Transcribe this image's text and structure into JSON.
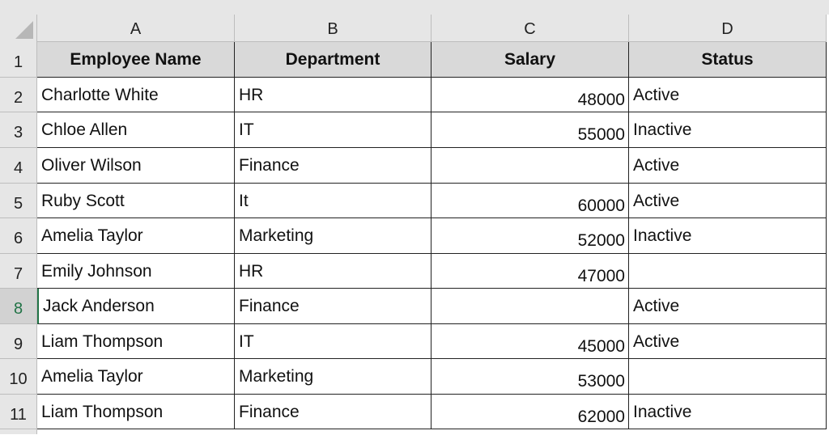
{
  "columns": [
    "A",
    "B",
    "C",
    "D"
  ],
  "rows": [
    "1",
    "2",
    "3",
    "4",
    "5",
    "6",
    "7",
    "8",
    "9",
    "10",
    "11"
  ],
  "selected_row": "8",
  "headers": [
    "Employee Name",
    "Department",
    "Salary",
    "Status"
  ],
  "data": [
    [
      "Charlotte White",
      "HR",
      "48000",
      "Active"
    ],
    [
      "Chloe Allen",
      "IT",
      "55000",
      "Inactive"
    ],
    [
      "Oliver Wilson",
      "Finance",
      "",
      "Active"
    ],
    [
      "Ruby Scott",
      "It",
      "60000",
      "Active"
    ],
    [
      "Amelia Taylor",
      "Marketing",
      "52000",
      "Inactive"
    ],
    [
      "Emily Johnson",
      "HR",
      "47000",
      ""
    ],
    [
      "Jack Anderson",
      "Finance",
      "",
      "Active"
    ],
    [
      "Liam Thompson",
      "IT",
      "45000",
      "Active"
    ],
    [
      "Amelia Taylor",
      "Marketing",
      "53000",
      ""
    ],
    [
      "Liam Thompson",
      "Finance",
      "62000",
      "Inactive"
    ]
  ],
  "colors": {
    "header_fill": "#d9d9d9",
    "selection": "#217346"
  }
}
